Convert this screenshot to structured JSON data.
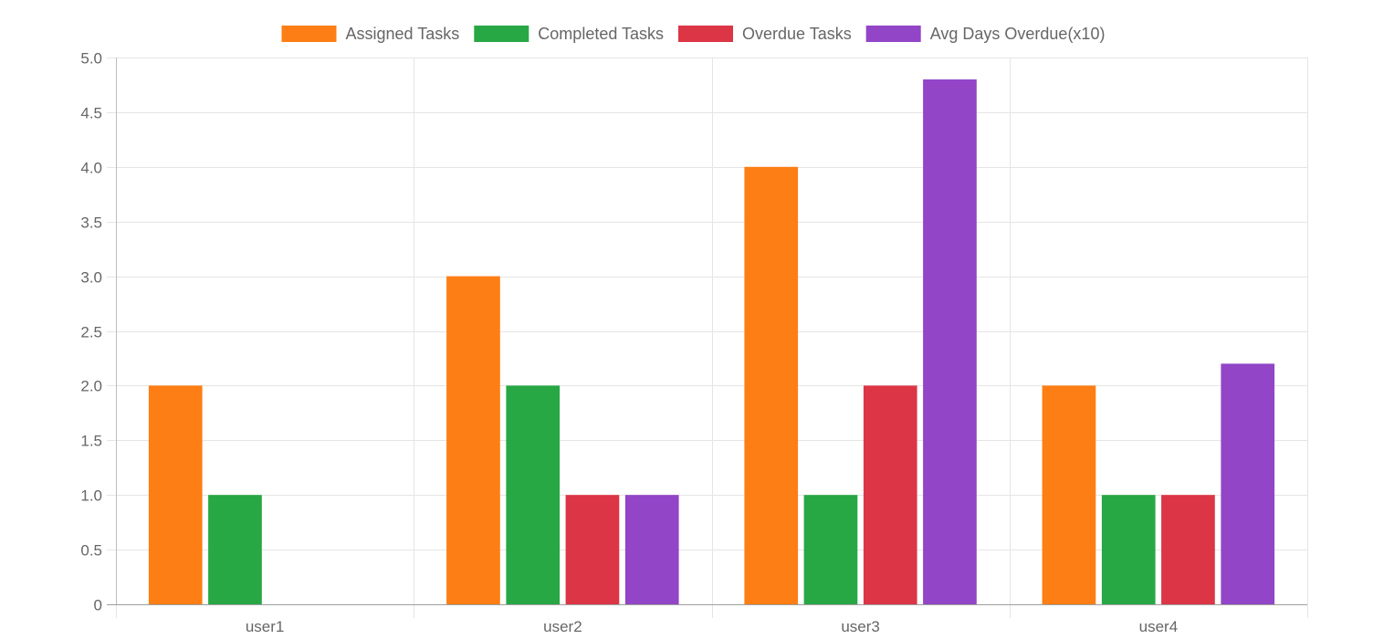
{
  "chart_data": {
    "type": "bar",
    "categories": [
      "user1",
      "user2",
      "user3",
      "user4"
    ],
    "series": [
      {
        "name": "Assigned Tasks",
        "color": "#fd7e14",
        "values": [
          2,
          3,
          4,
          2
        ]
      },
      {
        "name": "Completed Tasks",
        "color": "#28a745",
        "values": [
          1,
          2,
          1,
          1
        ]
      },
      {
        "name": "Overdue Tasks",
        "color": "#dc3545",
        "values": [
          0,
          1,
          2,
          1
        ]
      },
      {
        "name": "Avg Days Overdue(x10)",
        "color": "#9245c7",
        "values": [
          0,
          1,
          4.8,
          2.2
        ]
      }
    ],
    "yticks": [
      "0",
      "0.5",
      "1.0",
      "1.5",
      "2.0",
      "2.5",
      "3.0",
      "3.5",
      "4.0",
      "4.5",
      "5.0"
    ],
    "ylim": [
      0,
      5
    ],
    "title": "",
    "xlabel": "",
    "ylabel": "",
    "grid": true,
    "legend_position": "top"
  }
}
